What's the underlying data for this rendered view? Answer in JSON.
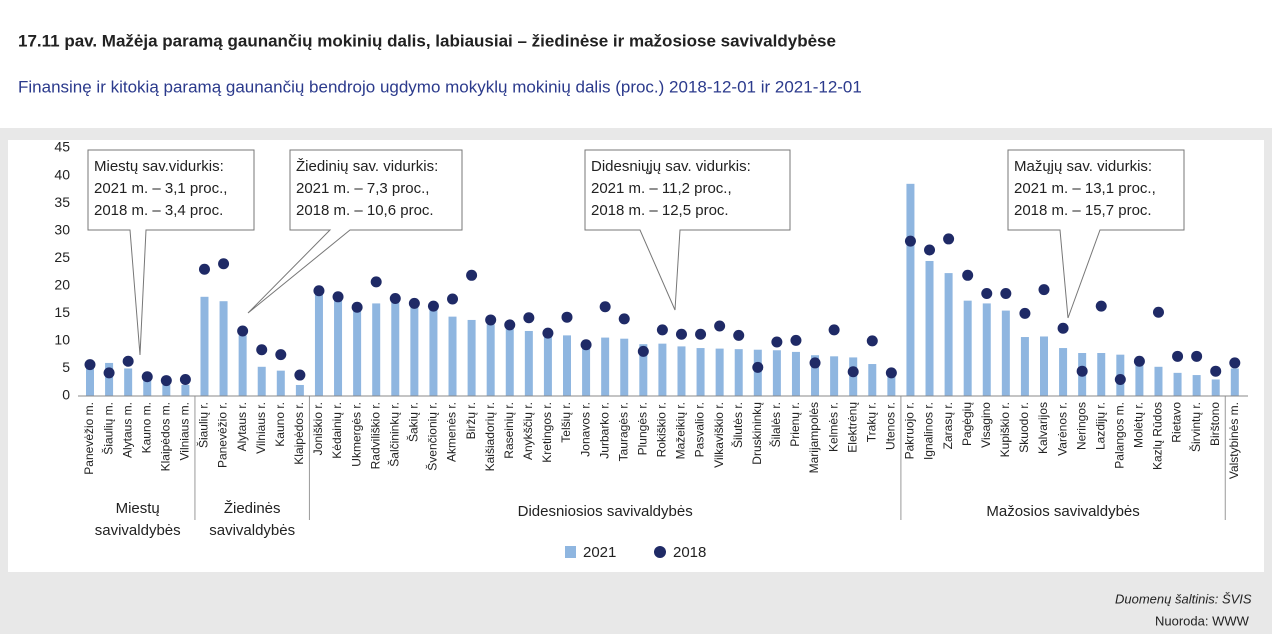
{
  "chart_data": {
    "type": "bar",
    "title": "17.11 pav. Mažėja paramą gaunančių mokinių dalis, labiausiai – žiedinėse ir mažosiose savivaldybėse",
    "subtitle": "Finansinę ir kitokią paramą gaunančių bendrojo ugdymo mokyklų mokinių dalis (proc.) 2018-12-01 ir 2021-12-01",
    "groups": [
      {
        "label": [
          "Miestų",
          "savivaldybės"
        ],
        "categories": [
          "Panevėžio m.",
          "Šiaulių m.",
          "Alytaus m.",
          "Kauno m.",
          "Klaipėdos m.",
          "Vilniaus m."
        ]
      },
      {
        "label": [
          "Žiedinės",
          "savivaldybės"
        ],
        "categories": [
          "Šiaulių r.",
          "Panevėžio r.",
          "Alytaus r.",
          "Vilniaus r.",
          "Kauno r.",
          "Klaipėdos r."
        ]
      },
      {
        "label": [
          "Didesniosios savivaldybės"
        ],
        "categories": [
          "Joniškio r.",
          "Kėdainių r.",
          "Ukmergės r.",
          "Radviliškio r.",
          "Šalčininkų r.",
          "Šakių r.",
          "Švenčionių r.",
          "Akmenės r.",
          "Biržų r.",
          "Kaišiadorių r.",
          "Raseinių r.",
          "Anykščių r.",
          "Kretingos r.",
          "Telšių r.",
          "Jonavos r.",
          "Jurbarko r.",
          "Tauragės r.",
          "Plungės r.",
          "Rokiškio r.",
          "Mažeikių r.",
          "Pasvalio r.",
          "Vilkaviškio r.",
          "Šilutės r.",
          "Druskininkų",
          "Šilalės r.",
          "Prienų r.",
          "Marijampolės",
          "Kelmės r.",
          "Elektrėnų",
          "Trakų r.",
          "Utenos r."
        ]
      },
      {
        "label": [
          "Mažosios savivaldybės"
        ],
        "categories": [
          "Pakruojo r.",
          "Ignalinos r.",
          "Zarasų r.",
          "Pagėgių",
          "Visagino",
          "Kupiškio r.",
          "Skuodo r.",
          "Kalvarijos",
          "Varėnos r.",
          "Neringos",
          "Lazdijų r.",
          "Palangos m.",
          "Molėtų r.",
          "Kazlų Rūdos",
          "Rietavo",
          "Širvintų r.",
          "Birštono"
        ]
      },
      {
        "label": [],
        "categories": [
          "Valstybinės m."
        ]
      }
    ],
    "series": [
      {
        "name": "2021",
        "color": "#8fb6e0",
        "values": [
          5.5,
          6,
          5,
          3,
          2,
          2,
          18,
          17.2,
          11,
          5.3,
          4.6,
          2,
          19.5,
          17.8,
          15.7,
          16.8,
          17.5,
          16.2,
          15.6,
          14.4,
          13.8,
          13,
          12.5,
          11.8,
          11.3,
          11,
          9.6,
          10.6,
          10.4,
          9.4,
          9.5,
          9,
          8.7,
          8.6,
          8.5,
          8.4,
          8.3,
          8,
          7.4,
          7.2,
          7,
          5.8,
          4.5,
          38.5,
          24.5,
          22.3,
          17.3,
          16.8,
          15.5,
          10.7,
          10.8,
          8.7,
          7.8,
          7.8,
          7.5,
          6.3,
          5.3,
          4.2,
          3.8,
          3,
          5
        ]
      },
      {
        "name": "2018",
        "color": "#1f2a66",
        "values": [
          5.7,
          4.2,
          6.3,
          3.5,
          2.8,
          3,
          23,
          24,
          11.8,
          8.4,
          7.5,
          3.8,
          19.1,
          18,
          16.1,
          20.7,
          17.7,
          16.8,
          16.3,
          17.6,
          21.9,
          13.8,
          12.9,
          14.2,
          11.4,
          14.3,
          9.3,
          16.2,
          14,
          8.1,
          12,
          11.2,
          11.2,
          12.7,
          11,
          5.2,
          9.8,
          10.1,
          6,
          12,
          4.4,
          10,
          4.2,
          28.1,
          26.5,
          28.5,
          21.9,
          18.6,
          18.6,
          15,
          19.3,
          12.3,
          4.5,
          16.3,
          3,
          6.3,
          15.2,
          7.2,
          7.2,
          4.5,
          6
        ]
      }
    ],
    "ylim": [
      0,
      45
    ],
    "yticks": [
      0,
      5,
      10,
      15,
      20,
      25,
      30,
      35,
      40,
      45
    ],
    "annotations": [
      {
        "lines": [
          "Miestų sav.vidurkis:",
          "2021 m. – 3,1 proc.,",
          "2018 m. – 3,4 proc."
        ]
      },
      {
        "lines": [
          "Žiedinių sav. vidurkis:",
          "2021 m. – 7,3 proc.,",
          "2018 m. – 10,6 proc."
        ]
      },
      {
        "lines": [
          "Didesnių̧jų sav. vidurkis:",
          "2021 m. – 11,2 proc.,",
          "2018 m. – 12,5 proc."
        ]
      },
      {
        "lines": [
          "Mažųjų sav. vidurkis:",
          "2021 m. – 13,1 proc.,",
          "2018 m. – 15,7 proc."
        ]
      }
    ],
    "source": "Duomenų šaltinis: ŠVIS",
    "link": "Nuoroda: WWW"
  }
}
